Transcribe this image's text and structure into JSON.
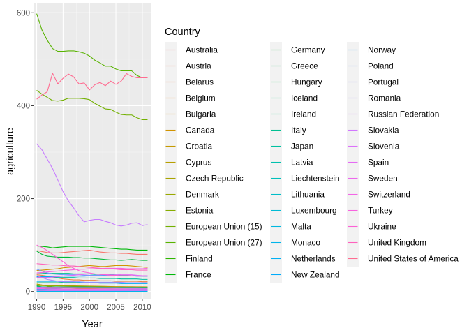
{
  "chart_data": {
    "type": "line",
    "xlabel": "Year",
    "ylabel": "agriculture",
    "xlim": [
      1989.4,
      2011.6
    ],
    "ylim": [
      -17,
      620
    ],
    "x_ticks": [
      1990,
      1995,
      2000,
      2005,
      2010
    ],
    "y_ticks": [
      0,
      200,
      400,
      600
    ],
    "grid": true,
    "legend": {
      "title": "Country",
      "placement": "right",
      "columns": 3
    },
    "x": [
      1990,
      1991,
      1992,
      1993,
      1994,
      1995,
      1996,
      1997,
      1998,
      1999,
      2000,
      2001,
      2002,
      2003,
      2004,
      2005,
      2006,
      2007,
      2008,
      2009,
      2010,
      2011
    ],
    "series": [
      {
        "name": "Australia",
        "color": "#F8766D",
        "values": [
          88,
          86,
          84,
          83,
          83,
          84,
          85,
          86,
          87,
          88,
          89,
          87,
          85,
          84,
          83,
          83,
          82,
          82,
          81,
          80,
          80,
          80
        ]
      },
      {
        "name": "Austria",
        "color": "#F37B59",
        "values": [
          9.3,
          9.1,
          8.9,
          8.8,
          8.8,
          8.8,
          8.7,
          8.6,
          8.6,
          8.5,
          8.3,
          8.2,
          8.1,
          8.0,
          7.9,
          7.9,
          7.8,
          7.8,
          7.8,
          7.7,
          7.6,
          7.6
        ]
      },
      {
        "name": "Belarus",
        "color": "#ED8141",
        "values": [
          36,
          35,
          33,
          31,
          29,
          27,
          26,
          25,
          25,
          24,
          24,
          24,
          23,
          23,
          23,
          22,
          22,
          22,
          22,
          22,
          21,
          21
        ]
      },
      {
        "name": "Belgium",
        "color": "#E58700",
        "values": [
          13,
          13,
          12.8,
          12.6,
          12.5,
          12.4,
          12.3,
          12.2,
          12.0,
          11.8,
          11.6,
          11.4,
          11.2,
          11.0,
          10.8,
          10.6,
          10.5,
          10.4,
          10.3,
          10.2,
          10.1,
          10.0
        ]
      },
      {
        "name": "Bulgaria",
        "color": "#DC8D00",
        "values": [
          16,
          14,
          12,
          10,
          9,
          8.5,
          8,
          7.5,
          7,
          6.5,
          6.3,
          6.2,
          6.1,
          6.0,
          6.0,
          5.9,
          5.9,
          5.8,
          5.8,
          5.8,
          5.8,
          5.8
        ]
      },
      {
        "name": "Canada",
        "color": "#D19300",
        "values": [
          45,
          46,
          47,
          48,
          49,
          51,
          52,
          53,
          54,
          55,
          56,
          55,
          54,
          54,
          55,
          56,
          56,
          56,
          55,
          54,
          53,
          52
        ]
      },
      {
        "name": "Croatia",
        "color": "#C59900",
        "values": [
          4.5,
          4.2,
          4.0,
          3.8,
          3.7,
          3.6,
          3.5,
          3.4,
          3.4,
          3.3,
          3.3,
          3.2,
          3.2,
          3.2,
          3.1,
          3.1,
          3.1,
          3.0,
          3.0,
          3.0,
          3.0,
          3.0
        ]
      },
      {
        "name": "Cyprus",
        "color": "#B79F00",
        "values": [
          0.8,
          0.8,
          0.8,
          0.8,
          0.8,
          0.8,
          0.8,
          0.8,
          0.8,
          0.8,
          0.8,
          0.8,
          0.8,
          0.8,
          0.8,
          0.8,
          0.8,
          0.7,
          0.7,
          0.7,
          0.7,
          0.7
        ]
      },
      {
        "name": "Czech Republic",
        "color": "#A9A400",
        "values": [
          16,
          14,
          12,
          10.5,
          9.5,
          9.2,
          9.0,
          8.8,
          8.6,
          8.5,
          8.4,
          8.3,
          8.2,
          8.1,
          8.0,
          8.0,
          7.9,
          7.9,
          7.8,
          7.8,
          7.7,
          7.7
        ]
      },
      {
        "name": "Denmark",
        "color": "#99A800",
        "values": [
          13,
          12.8,
          12.6,
          12.4,
          12.2,
          12.0,
          11.8,
          11.6,
          11.4,
          11.2,
          11.0,
          10.8,
          10.6,
          10.4,
          10.2,
          10.0,
          9.9,
          9.8,
          9.7,
          9.6,
          9.5,
          9.5
        ]
      },
      {
        "name": "Estonia",
        "color": "#87AC00",
        "values": [
          3.5,
          3.2,
          2.8,
          2.4,
          2.0,
          1.8,
          1.6,
          1.5,
          1.4,
          1.4,
          1.3,
          1.3,
          1.3,
          1.3,
          1.3,
          1.3,
          1.3,
          1.3,
          1.3,
          1.3,
          1.3,
          1.3
        ]
      },
      {
        "name": "European Union (15)",
        "color": "#72B000",
        "values": [
          433,
          425,
          418,
          411,
          410,
          412,
          416,
          416,
          416,
          415,
          413,
          405,
          399,
          393,
          392,
          386,
          381,
          380,
          380,
          374,
          370,
          370
        ]
      },
      {
        "name": "European Union (27)",
        "color": "#58B300",
        "values": [
          598,
          563,
          541,
          523,
          517,
          517,
          518,
          518,
          516,
          513,
          507,
          498,
          492,
          485,
          485,
          479,
          475,
          475,
          475,
          465,
          460,
          460
        ]
      },
      {
        "name": "Finland",
        "color": "#2EB600",
        "values": [
          6.5,
          6.3,
          6.1,
          5.9,
          5.8,
          5.7,
          5.7,
          5.6,
          5.6,
          5.5,
          5.5,
          5.5,
          5.5,
          5.4,
          5.4,
          5.4,
          5.4,
          5.4,
          5.3,
          5.3,
          5.3,
          5.3
        ]
      },
      {
        "name": "France",
        "color": "#00B80A",
        "values": [
          98,
          97,
          96,
          94,
          95,
          96,
          97,
          97,
          97,
          97,
          97,
          96,
          95,
          94,
          93,
          92,
          91,
          91,
          90,
          89,
          89,
          89
        ]
      },
      {
        "name": "Germany",
        "color": "#00BA38",
        "values": [
          87,
          80,
          76,
          75,
          74,
          74,
          74,
          73,
          73,
          72,
          72,
          71,
          70,
          69,
          68,
          68,
          67,
          68,
          69,
          68,
          67,
          67
        ]
      },
      {
        "name": "Greece",
        "color": "#00BB4E",
        "values": [
          10,
          10,
          10,
          10,
          10,
          10,
          10,
          10,
          10,
          10,
          9.8,
          9.6,
          9.5,
          9.3,
          9.2,
          9.0,
          8.9,
          8.8,
          8.7,
          8.6,
          8.5,
          8.4
        ]
      },
      {
        "name": "Hungary",
        "color": "#00BC61",
        "values": [
          12,
          10,
          9,
          8.5,
          8.3,
          8.3,
          8.4,
          8.5,
          8.6,
          8.6,
          8.7,
          8.8,
          8.8,
          8.8,
          8.9,
          8.9,
          9.0,
          9.0,
          9.0,
          9.0,
          9.0,
          9.0
        ]
      },
      {
        "name": "Iceland",
        "color": "#00BE72",
        "values": [
          0.6,
          0.6,
          0.6,
          0.6,
          0.6,
          0.6,
          0.6,
          0.6,
          0.6,
          0.6,
          0.6,
          0.6,
          0.6,
          0.6,
          0.6,
          0.6,
          0.6,
          0.6,
          0.6,
          0.6,
          0.6,
          0.6
        ]
      },
      {
        "name": "Ireland",
        "color": "#00BE82",
        "values": [
          19,
          19,
          19,
          19,
          19,
          20,
          20,
          20,
          20,
          20,
          19,
          19,
          19,
          19,
          19,
          19,
          19,
          19,
          19,
          18,
          18,
          18
        ]
      },
      {
        "name": "Italy",
        "color": "#00BF91",
        "values": [
          40,
          40,
          39,
          39,
          39,
          39,
          39,
          38,
          38,
          38,
          38,
          37,
          37,
          36,
          36,
          35,
          35,
          35,
          34,
          34,
          33,
          33
        ]
      },
      {
        "name": "Japan",
        "color": "#00C0A0",
        "values": [
          31,
          31,
          31,
          31,
          30,
          30,
          30,
          30,
          29,
          29,
          29,
          29,
          28,
          28,
          28,
          28,
          27,
          27,
          27,
          27,
          26,
          26
        ]
      },
      {
        "name": "Latvia",
        "color": "#00C0AE",
        "values": [
          4.5,
          4.0,
          3.5,
          3.0,
          2.5,
          2.2,
          2.1,
          2.0,
          2.0,
          2.0,
          2.0,
          2.0,
          2.0,
          2.0,
          2.0,
          2.0,
          2.0,
          2.0,
          2.0,
          2.0,
          2.0,
          2.0
        ]
      },
      {
        "name": "Liechtenstein",
        "color": "#00BFBB",
        "values": [
          0.05,
          0.05,
          0.05,
          0.05,
          0.05,
          0.05,
          0.05,
          0.05,
          0.05,
          0.05,
          0.05,
          0.05,
          0.05,
          0.05,
          0.05,
          0.05,
          0.05,
          0.05,
          0.05,
          0.05,
          0.05,
          0.05
        ]
      },
      {
        "name": "Lithuania",
        "color": "#00BDC8",
        "values": [
          10,
          9,
          8,
          7,
          6,
          5.5,
          5.2,
          5.0,
          5.0,
          4.9,
          4.8,
          4.8,
          4.8,
          4.8,
          4.8,
          4.8,
          4.8,
          4.8,
          4.8,
          4.8,
          4.8,
          4.8
        ]
      },
      {
        "name": "Luxembourg",
        "color": "#00BBD4",
        "values": [
          0.7,
          0.7,
          0.7,
          0.7,
          0.7,
          0.7,
          0.7,
          0.7,
          0.7,
          0.7,
          0.7,
          0.7,
          0.7,
          0.7,
          0.7,
          0.7,
          0.7,
          0.7,
          0.7,
          0.7,
          0.7,
          0.7
        ]
      },
      {
        "name": "Malta",
        "color": "#00B8DF",
        "values": [
          0.1,
          0.1,
          0.1,
          0.1,
          0.1,
          0.1,
          0.1,
          0.1,
          0.1,
          0.1,
          0.1,
          0.1,
          0.1,
          0.1,
          0.1,
          0.1,
          0.1,
          0.1,
          0.1,
          0.1,
          0.1,
          0.1
        ]
      },
      {
        "name": "Monaco",
        "color": "#00B4EA",
        "values": [
          0,
          0,
          0,
          0,
          0,
          0,
          0,
          0,
          0,
          0,
          0,
          0,
          0,
          0,
          0,
          0,
          0,
          0,
          0,
          0,
          0,
          0
        ]
      },
      {
        "name": "Netherlands",
        "color": "#00B0F3",
        "values": [
          22,
          22,
          22,
          22,
          22,
          21,
          21,
          21,
          20,
          20,
          19,
          19,
          18,
          18,
          18,
          18,
          17,
          17,
          17,
          17,
          17,
          17
        ]
      },
      {
        "name": "New Zealand",
        "color": "#00ABFB",
        "values": [
          32,
          32,
          32,
          32,
          32,
          33,
          33,
          33,
          33,
          33,
          34,
          34,
          35,
          35,
          35,
          35,
          34,
          34,
          34,
          33,
          33,
          33
        ]
      },
      {
        "name": "Norway",
        "color": "#35A2FF",
        "values": [
          4.5,
          4.5,
          4.5,
          4.5,
          4.5,
          4.5,
          4.5,
          4.5,
          4.5,
          4.4,
          4.4,
          4.4,
          4.4,
          4.3,
          4.3,
          4.3,
          4.3,
          4.3,
          4.3,
          4.3,
          4.3,
          4.3
        ]
      },
      {
        "name": "Poland",
        "color": "#7099FF",
        "values": [
          48,
          44,
          40,
          38,
          37,
          36,
          36,
          36,
          36,
          35,
          35,
          35,
          35,
          34,
          34,
          34,
          34,
          34,
          34,
          34,
          34,
          34
        ]
      },
      {
        "name": "Portugal",
        "color": "#8F91FF",
        "values": [
          8.5,
          8.5,
          8.4,
          8.3,
          8.2,
          8.1,
          8.0,
          8.0,
          7.9,
          7.8,
          7.8,
          7.7,
          7.6,
          7.5,
          7.5,
          7.4,
          7.4,
          7.4,
          7.3,
          7.3,
          7.3,
          7.3
        ]
      },
      {
        "name": "Romania",
        "color": "#A58AFF",
        "values": [
          34,
          30,
          26,
          24,
          22,
          21,
          21,
          21,
          21,
          20,
          20,
          20,
          20,
          20,
          20,
          20,
          20,
          19,
          19,
          19,
          19,
          19
        ]
      },
      {
        "name": "Russian Federation",
        "color": "#C77CFF",
        "values": [
          318,
          305,
          285,
          265,
          240,
          215,
          195,
          180,
          163,
          150,
          153,
          155,
          155,
          151,
          148,
          143,
          141,
          143,
          147,
          148,
          142,
          144
        ]
      },
      {
        "name": "Slovakia",
        "color": "#D177FF",
        "values": [
          7.5,
          6.5,
          5.5,
          5.0,
          4.8,
          4.7,
          4.6,
          4.5,
          4.4,
          4.3,
          4.2,
          4.1,
          4.0,
          3.9,
          3.8,
          3.8,
          3.7,
          3.7,
          3.6,
          3.6,
          3.5,
          3.5
        ]
      },
      {
        "name": "Slovenia",
        "color": "#DC71FA",
        "values": [
          2.2,
          2.2,
          2.1,
          2.1,
          2.1,
          2.1,
          2.1,
          2.0,
          2.0,
          2.0,
          2.0,
          2.0,
          2.0,
          2.0,
          2.0,
          2.0,
          2.0,
          2.0,
          2.0,
          2.0,
          2.0,
          2.0
        ]
      },
      {
        "name": "Spain",
        "color": "#E56BF4",
        "values": [
          30,
          30,
          30,
          31,
          32,
          33,
          34,
          35,
          36,
          37,
          38,
          38,
          37,
          37,
          37,
          37,
          36,
          36,
          36,
          35,
          34,
          34
        ]
      },
      {
        "name": "Sweden",
        "color": "#ED68ED",
        "values": [
          9,
          9,
          8.9,
          8.8,
          8.8,
          8.7,
          8.7,
          8.6,
          8.5,
          8.5,
          8.4,
          8.4,
          8.3,
          8.3,
          8.2,
          8.2,
          8.1,
          8.1,
          8.0,
          8.0,
          7.9,
          7.9
        ]
      },
      {
        "name": "Switzerland",
        "color": "#F365E6",
        "values": [
          6.0,
          5.9,
          5.9,
          5.8,
          5.8,
          5.7,
          5.7,
          5.6,
          5.6,
          5.5,
          5.5,
          5.5,
          5.5,
          5.5,
          5.5,
          5.5,
          5.4,
          5.4,
          5.4,
          5.4,
          5.4,
          5.4
        ]
      },
      {
        "name": "Turkey",
        "color": "#F863DF",
        "values": [
          40,
          41,
          42,
          43,
          44,
          45,
          46,
          47,
          48,
          48,
          49,
          49,
          49,
          50,
          50,
          50,
          50,
          49,
          49,
          49,
          49,
          50
        ]
      },
      {
        "name": "Ukraine",
        "color": "#FC61D5",
        "values": [
          100,
          95,
          88,
          80,
          72,
          64,
          56,
          50,
          45,
          42,
          40,
          38,
          37,
          36,
          35,
          35,
          34,
          34,
          34,
          33,
          33,
          33
        ]
      },
      {
        "name": "United Kingdom",
        "color": "#FF62BC",
        "values": [
          60,
          59,
          58,
          57,
          57,
          56,
          55,
          55,
          54,
          53,
          52,
          51,
          50,
          49,
          49,
          48,
          47,
          47,
          47,
          46,
          46,
          46
        ]
      },
      {
        "name": "United States of America",
        "color": "#FF6C91",
        "values": [
          414,
          423,
          430,
          470,
          447,
          459,
          468,
          462,
          447,
          449,
          434,
          445,
          450,
          443,
          453,
          446,
          453,
          469,
          463,
          460,
          460,
          460
        ]
      }
    ]
  }
}
